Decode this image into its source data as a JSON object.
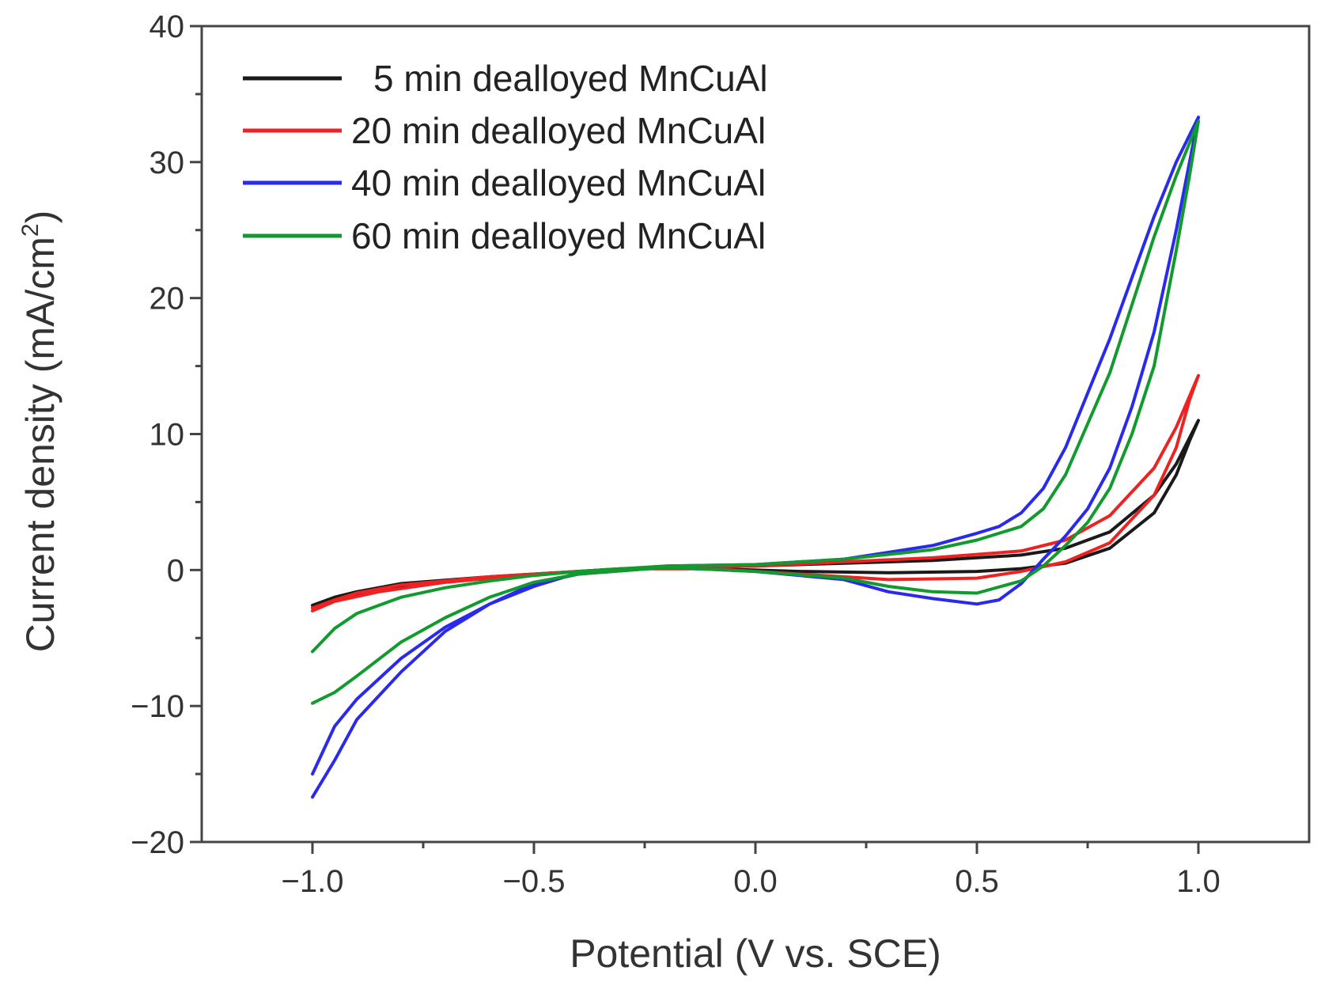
{
  "chart_data": {
    "type": "line",
    "title": "",
    "xlabel": "Potential (V vs. SCE)",
    "ylabel_main": "Current density (mA/cm",
    "ylabel_sup": "2",
    "ylabel_end": ")",
    "xlim": [
      -1.25,
      1.25
    ],
    "ylim": [
      -20,
      40
    ],
    "x_ticks": [
      -1.0,
      -0.5,
      0.0,
      0.5,
      1.0
    ],
    "x_tick_labels": [
      "−1.0",
      "−0.5",
      "0.0",
      "0.5",
      "1.0"
    ],
    "y_ticks": [
      -20,
      -10,
      0,
      10,
      20,
      30,
      40
    ],
    "y_tick_labels": [
      "−20",
      "−10",
      "0",
      "10",
      "20",
      "30",
      "40"
    ],
    "legend_position": "top-left",
    "series": [
      {
        "name": "5 min dealloyed MnCuAl",
        "color": "#1a1a1a",
        "x": [
          -1.0,
          -0.95,
          -0.9,
          -0.8,
          -0.6,
          -0.4,
          -0.2,
          0.0,
          0.2,
          0.4,
          0.6,
          0.7,
          0.8,
          0.9,
          0.95,
          1.0,
          0.98,
          0.95,
          0.9,
          0.8,
          0.7,
          0.6,
          0.5,
          0.3,
          0.1,
          -0.1,
          -0.3,
          -0.5,
          -0.7,
          -0.85,
          -0.95,
          -1.0
        ],
        "y": [
          -2.6,
          -2.0,
          -1.6,
          -1.0,
          -0.5,
          -0.1,
          0.2,
          0.3,
          0.5,
          0.7,
          1.1,
          1.6,
          2.8,
          5.5,
          7.8,
          11.0,
          9.5,
          7.0,
          4.2,
          1.6,
          0.5,
          0.1,
          -0.1,
          -0.2,
          -0.1,
          0.1,
          0.1,
          -0.3,
          -0.9,
          -1.5,
          -2.2,
          -2.8
        ]
      },
      {
        "name": "20 min dealloyed MnCuAl",
        "color": "#ee2222",
        "x": [
          -1.0,
          -0.95,
          -0.9,
          -0.8,
          -0.6,
          -0.4,
          -0.2,
          0.0,
          0.2,
          0.4,
          0.6,
          0.7,
          0.8,
          0.9,
          0.95,
          1.0,
          0.98,
          0.95,
          0.9,
          0.8,
          0.7,
          0.6,
          0.5,
          0.3,
          0.1,
          -0.1,
          -0.3,
          -0.5,
          -0.7,
          -0.85,
          -0.95,
          -1.0
        ],
        "y": [
          -2.8,
          -2.2,
          -1.7,
          -1.1,
          -0.5,
          -0.1,
          0.2,
          0.3,
          0.6,
          0.9,
          1.4,
          2.2,
          4.0,
          7.5,
          10.5,
          14.3,
          12.5,
          9.0,
          5.5,
          2.0,
          0.6,
          -0.1,
          -0.6,
          -0.7,
          -0.3,
          0.1,
          0.1,
          -0.3,
          -0.9,
          -1.6,
          -2.3,
          -3.0
        ]
      },
      {
        "name": "40 min dealloyed MnCuAl",
        "color": "#2a2aee",
        "x": [
          -1.0,
          -0.95,
          -0.9,
          -0.8,
          -0.7,
          -0.6,
          -0.5,
          -0.4,
          -0.2,
          0.0,
          0.2,
          0.4,
          0.5,
          0.55,
          0.6,
          0.65,
          0.7,
          0.8,
          0.9,
          0.95,
          1.0,
          0.98,
          0.95,
          0.9,
          0.85,
          0.8,
          0.75,
          0.7,
          0.65,
          0.6,
          0.55,
          0.5,
          0.4,
          0.3,
          0.2,
          0.0,
          -0.2,
          -0.4,
          -0.5,
          -0.6,
          -0.7,
          -0.8,
          -0.9,
          -0.95,
          -1.0
        ],
        "y": [
          -15.0,
          -11.5,
          -9.5,
          -6.5,
          -4.2,
          -2.5,
          -1.2,
          -0.2,
          0.3,
          0.4,
          0.8,
          1.8,
          2.7,
          3.2,
          4.2,
          6.0,
          9.0,
          17.0,
          26.0,
          30.0,
          33.3,
          30.0,
          25.0,
          17.5,
          12.0,
          7.5,
          4.5,
          2.5,
          0.8,
          -1.0,
          -2.2,
          -2.5,
          -2.1,
          -1.6,
          -0.7,
          -0.1,
          0.2,
          -0.3,
          -1.0,
          -2.5,
          -4.5,
          -7.5,
          -11.0,
          -14.0,
          -16.7
        ]
      },
      {
        "name": "60 min dealloyed MnCuAl",
        "color": "#129a2e",
        "x": [
          -1.0,
          -0.95,
          -0.9,
          -0.8,
          -0.7,
          -0.6,
          -0.5,
          -0.4,
          -0.2,
          0.0,
          0.2,
          0.4,
          0.5,
          0.6,
          0.65,
          0.7,
          0.8,
          0.9,
          0.95,
          1.0,
          0.98,
          0.95,
          0.9,
          0.85,
          0.8,
          0.75,
          0.7,
          0.65,
          0.6,
          0.5,
          0.4,
          0.3,
          0.2,
          0.0,
          -0.2,
          -0.4,
          -0.5,
          -0.6,
          -0.7,
          -0.8,
          -0.9,
          -0.95,
          -1.0
        ],
        "y": [
          -6.0,
          -4.3,
          -3.2,
          -2.0,
          -1.3,
          -0.8,
          -0.4,
          -0.1,
          0.3,
          0.4,
          0.8,
          1.5,
          2.2,
          3.2,
          4.5,
          7.0,
          14.5,
          24.5,
          29.0,
          33.0,
          29.0,
          23.5,
          15.0,
          10.0,
          6.0,
          3.5,
          1.8,
          0.3,
          -0.8,
          -1.7,
          -1.6,
          -1.2,
          -0.6,
          -0.1,
          0.2,
          -0.3,
          -0.9,
          -2.0,
          -3.5,
          -5.3,
          -7.8,
          -9.0,
          -9.8
        ]
      }
    ]
  }
}
